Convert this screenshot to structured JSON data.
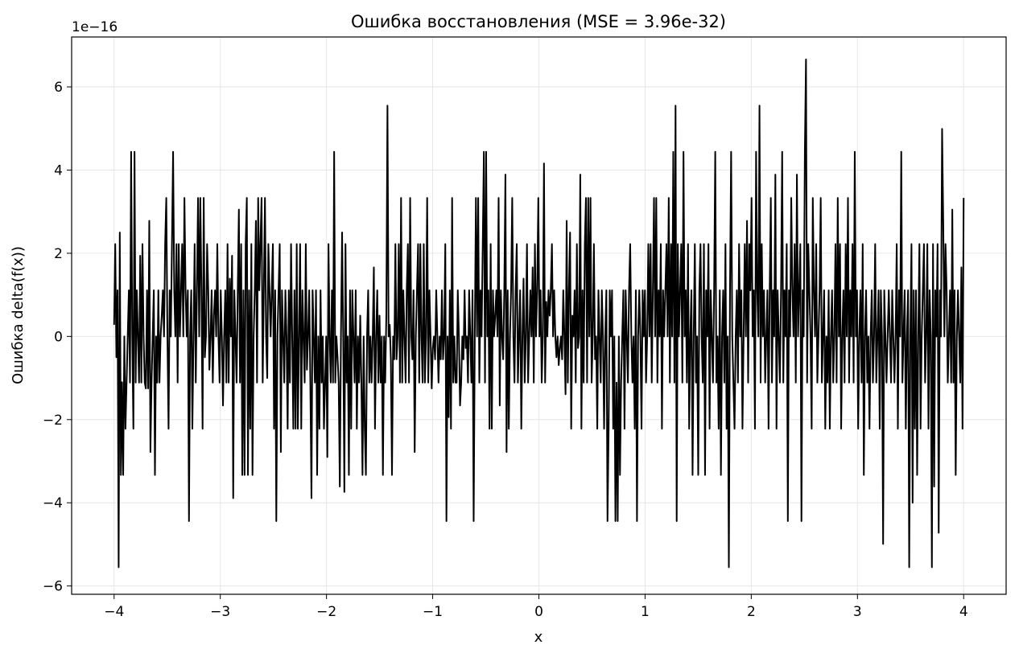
{
  "chart_data": {
    "type": "line",
    "title": "Ошибка восстановления (MSE = 3.96e-32)",
    "xlabel": "x",
    "ylabel": "Ошибка delta(f(x))",
    "y_offset_label": "1e−16",
    "y_scale_factor": 1e-16,
    "xlim": [
      -4.4,
      4.4
    ],
    "ylim": [
      -6.2,
      7.2
    ],
    "x_ticks": [
      -4,
      -3,
      -2,
      -1,
      0,
      1,
      2,
      3,
      4
    ],
    "x_tick_labels": [
      "−4",
      "−3",
      "−2",
      "−1",
      "0",
      "1",
      "2",
      "3",
      "4"
    ],
    "y_ticks": [
      -6,
      -4,
      -2,
      0,
      2,
      4,
      6
    ],
    "y_tick_labels": [
      "−6",
      "−4",
      "−2",
      "0",
      "2",
      "4",
      "6"
    ],
    "grid": true,
    "line_color": "#000000",
    "grid_color": "#e6e6e6",
    "x_start": -4,
    "x_end": 4,
    "series": [
      {
        "values": [
          0.28,
          2.22,
          -0.5,
          1.11,
          -5.55,
          2.5,
          -3.33,
          -1.1,
          -3.33,
          0.0,
          -2.22,
          -1.11,
          0.0,
          1.11,
          -1.11,
          4.44,
          0.0,
          -2.22,
          4.44,
          -1.11,
          1.11,
          0.0,
          -1.11,
          1.94,
          -1.11,
          2.22,
          0.0,
          -1.11,
          -1.25,
          1.11,
          -1.25,
          2.78,
          -2.78,
          -1.11,
          0.0,
          1.11,
          -3.33,
          0.0,
          -1.11,
          1.11,
          -1.11,
          0.0,
          0.5,
          1.11,
          0.0,
          2.22,
          3.33,
          0.0,
          -2.22,
          1.11,
          0.0,
          2.22,
          4.44,
          1.11,
          0.0,
          2.22,
          -1.11,
          2.22,
          0.0,
          1.11,
          2.22,
          0.0,
          3.33,
          1.11,
          0.0,
          1.11,
          -4.44,
          0.0,
          1.11,
          -2.22,
          0.0,
          2.22,
          -1.11,
          1.11,
          3.33,
          0.0,
          3.33,
          1.11,
          -2.22,
          3.33,
          -0.5,
          0.0,
          2.22,
          1.11,
          -0.8,
          0.0,
          1.11,
          -1.11,
          0.5,
          1.11,
          0.0,
          2.22,
          0.0,
          -1.11,
          1.11,
          0.0,
          -1.66,
          0.0,
          1.11,
          -1.11,
          2.22,
          -1.11,
          1.39,
          0.0,
          1.94,
          -3.89,
          1.11,
          0.0,
          -1.11,
          1.11,
          3.05,
          -1.11,
          2.22,
          -3.33,
          1.11,
          -3.33,
          2.22,
          3.33,
          -3.33,
          1.11,
          -2.22,
          2.22,
          -3.33,
          0.0,
          1.11,
          2.78,
          -1.11,
          3.33,
          1.11,
          2.22,
          3.33,
          -1.11,
          1.11,
          3.33,
          0.0,
          -1.0,
          2.22,
          1.11,
          0.0,
          1.11,
          2.22,
          -2.22,
          1.11,
          -4.44,
          0.0,
          1.11,
          2.22,
          -2.78,
          1.11,
          0.0,
          -1.11,
          1.11,
          0.0,
          -2.22,
          1.11,
          -1.11,
          2.22,
          0.0,
          -2.22,
          1.11,
          -2.22,
          2.22,
          -2.22,
          0.0,
          2.22,
          -2.22,
          1.11,
          0.0,
          -1.11,
          2.22,
          -0.8,
          0.0,
          1.11,
          -1.11,
          -3.89,
          1.11,
          0.0,
          -1.11,
          1.11,
          -3.33,
          0.0,
          -2.22,
          1.11,
          -1.11,
          0.0,
          -2.22,
          -1.11,
          0.0,
          -2.9,
          2.22,
          0.0,
          -1.11,
          1.11,
          -1.11,
          4.44,
          -1.11,
          0.0,
          -0.5,
          -1.11,
          -3.61,
          0.0,
          2.5,
          0.0,
          -3.74,
          2.22,
          -1.11,
          0.0,
          -3.33,
          1.11,
          -2.22,
          1.11,
          0.0,
          -1.11,
          1.11,
          -2.22,
          0.0,
          -1.11,
          0.5,
          -1.11,
          -3.33,
          0.0,
          -2.22,
          -3.33,
          0.0,
          1.11,
          -1.11,
          0.0,
          -1.11,
          0.0,
          1.66,
          -2.22,
          0.0,
          1.11,
          -1.11,
          0.5,
          -1.11,
          0.0,
          -3.33,
          0.0,
          -1.11,
          0.5,
          5.55,
          0.0,
          0.28,
          -0.55,
          -3.33,
          0.0,
          -0.55,
          2.22,
          -0.55,
          0.0,
          2.22,
          -1.11,
          3.33,
          -1.11,
          1.11,
          0.0,
          -1.11,
          1.11,
          2.22,
          -1.11,
          3.33,
          0.0,
          -0.55,
          1.11,
          -2.78,
          0.0,
          1.11,
          2.22,
          -1.11,
          2.22,
          0.0,
          -1.11,
          2.22,
          -1.11,
          0.0,
          3.33,
          -1.11,
          1.11,
          0.0,
          -1.25,
          -0.28,
          0.0,
          -0.55,
          1.11,
          0.0,
          -1.11,
          0.0,
          -0.55,
          1.11,
          -0.55,
          0.0,
          2.22,
          -4.44,
          0.0,
          -1.94,
          1.11,
          -2.22,
          3.33,
          -1.11,
          0.0,
          -1.11,
          -1.11,
          1.11,
          0.0,
          -1.66,
          -1.11,
          0.0,
          -0.55,
          1.11,
          -0.28,
          0.0,
          -1.11,
          1.11,
          0.0,
          -1.11,
          1.11,
          -4.44,
          0.0,
          3.33,
          0.0,
          3.33,
          -1.11,
          1.11,
          0.0,
          2.22,
          4.44,
          -1.11,
          4.44,
          0.0,
          1.11,
          -2.22,
          2.22,
          -2.22,
          1.11,
          0.0,
          0.5,
          1.11,
          0.0,
          3.33,
          -1.66,
          1.11,
          0.0,
          -0.55,
          1.11,
          3.89,
          -2.78,
          1.11,
          -2.22,
          0.0,
          1.11,
          3.33,
          0.0,
          -1.11,
          1.11,
          2.22,
          -1.11,
          0.0,
          1.11,
          -2.22,
          0.0,
          1.39,
          -1.11,
          0.0,
          2.22,
          -1.11,
          0.0,
          1.11,
          0.0,
          1.66,
          -1.11,
          2.22,
          0.0,
          1.11,
          3.33,
          0.0,
          1.11,
          -1.11,
          0.0,
          4.16,
          -1.11,
          0.83,
          0.0,
          1.11,
          0.5,
          1.11,
          2.22,
          0.0,
          1.11,
          0.0,
          -0.5,
          0.0,
          -0.69,
          -0.28,
          0.0,
          -0.55,
          1.11,
          0.0,
          -1.39,
          2.78,
          -1.11,
          1.11,
          2.5,
          -2.22,
          0.5,
          0.0,
          1.11,
          -1.11,
          2.22,
          -0.28,
          0.0,
          3.89,
          -2.22,
          1.11,
          -1.11,
          2.22,
          3.33,
          -1.11,
          3.33,
          0.0,
          3.33,
          -1.11,
          0.0,
          2.22,
          -0.55,
          0.0,
          -2.22,
          1.11,
          0.0,
          -1.11,
          1.11,
          0.0,
          -2.22,
          0.0,
          1.11,
          -4.44,
          -2.22,
          1.11,
          0.0,
          1.11,
          -2.22,
          0.0,
          -4.44,
          -1.11,
          -4.44,
          0.0,
          -3.33,
          -1.11,
          0.0,
          1.11,
          -2.22,
          1.11,
          0.0,
          -1.11,
          1.11,
          2.22,
          0.0,
          -1.11,
          0.0,
          -2.22,
          1.11,
          -4.44,
          0.0,
          1.11,
          0.0,
          -2.22,
          1.11,
          0.0,
          1.11,
          -1.11,
          0.0,
          2.22,
          0.0,
          2.22,
          -1.11,
          1.11,
          3.33,
          0.0,
          3.33,
          -1.11,
          1.11,
          0.0,
          2.22,
          -2.22,
          1.11,
          0.0,
          1.11,
          2.22,
          0.0,
          3.33,
          -1.11,
          2.22,
          0.0,
          4.44,
          -1.11,
          5.55,
          -4.44,
          2.22,
          0.0,
          1.11,
          2.22,
          -1.11,
          4.44,
          0.0,
          1.11,
          -1.11,
          2.22,
          -2.22,
          0.0,
          1.11,
          -3.33,
          0.0,
          2.22,
          -1.11,
          0.0,
          -3.33,
          1.11,
          2.22,
          0.0,
          -1.11,
          2.22,
          -3.33,
          1.11,
          0.0,
          2.22,
          -2.22,
          1.11,
          0.0,
          -1.11,
          1.11,
          4.44,
          -1.11,
          0.0,
          -2.22,
          1.11,
          -3.33,
          0.0,
          1.11,
          -1.11,
          2.22,
          -2.22,
          0.0,
          -5.55,
          1.11,
          4.44,
          0.0,
          -1.11,
          -2.22,
          0.0,
          1.11,
          -1.11,
          2.22,
          0.0,
          1.11,
          -2.22,
          0.0,
          2.22,
          0.0,
          2.78,
          -1.11,
          2.22,
          1.11,
          3.33,
          0.0,
          1.11,
          -2.22,
          4.44,
          1.11,
          0.0,
          5.55,
          -1.11,
          2.22,
          0.0,
          1.11,
          -1.11,
          0.0,
          1.11,
          -2.22,
          1.11,
          3.33,
          -1.11,
          1.11,
          0.0,
          3.89,
          -2.22,
          1.11,
          0.0,
          -1.11,
          1.11,
          4.44,
          -1.11,
          1.11,
          0.0,
          2.22,
          -4.44,
          1.11,
          0.0,
          3.33,
          1.11,
          0.0,
          2.22,
          -1.11,
          3.89,
          0.0,
          1.11,
          2.22,
          -4.44,
          1.11,
          0.0,
          4.44,
          6.66,
          -1.11,
          2.22,
          1.11,
          0.0,
          -2.22,
          3.33,
          1.11,
          0.0,
          2.22,
          -1.11,
          0.0,
          1.11,
          3.33,
          -1.11,
          0.0,
          1.11,
          -2.22,
          0.0,
          -1.11,
          1.11,
          -2.22,
          0.0,
          1.11,
          -1.11,
          0.0,
          2.22,
          -1.11,
          3.33,
          0.0,
          2.22,
          -2.22,
          0.0,
          1.11,
          -1.11,
          2.22,
          0.0,
          3.33,
          -1.11,
          1.11,
          0.0,
          2.22,
          -1.11,
          4.44,
          0.0,
          1.11,
          -2.22,
          0.0,
          1.11,
          -1.11,
          2.22,
          -3.33,
          0.0,
          1.11,
          -1.11,
          0.0,
          -2.22,
          0.0,
          1.11,
          -1.11,
          0.0,
          2.22,
          -1.11,
          0.0,
          1.11,
          -2.22,
          1.11,
          0.0,
          -4.99,
          1.11,
          0.0,
          -1.11,
          0.0,
          1.11,
          0.0,
          -1.11,
          1.11,
          0.0,
          -1.11,
          0.0,
          2.22,
          -2.22,
          1.11,
          0.0,
          4.44,
          -1.11,
          0.0,
          1.11,
          -2.22,
          0.0,
          1.11,
          -5.55,
          0.0,
          2.22,
          -4.0,
          1.11,
          -2.22,
          1.11,
          -3.33,
          0.0,
          2.22,
          -2.22,
          0.0,
          1.11,
          2.22,
          -1.11,
          0.0,
          2.22,
          -2.22,
          1.11,
          0.0,
          -5.55,
          2.22,
          -3.61,
          1.11,
          0.0,
          2.22,
          -4.72,
          1.11,
          0.0,
          4.99,
          2.78,
          0.0,
          2.22,
          1.11,
          -1.11,
          0.0,
          1.11,
          -1.11,
          3.05,
          -1.11,
          1.11,
          -3.33,
          0.0,
          1.11,
          0.0,
          -1.11,
          1.66,
          -2.22,
          3.33
        ]
      }
    ]
  }
}
